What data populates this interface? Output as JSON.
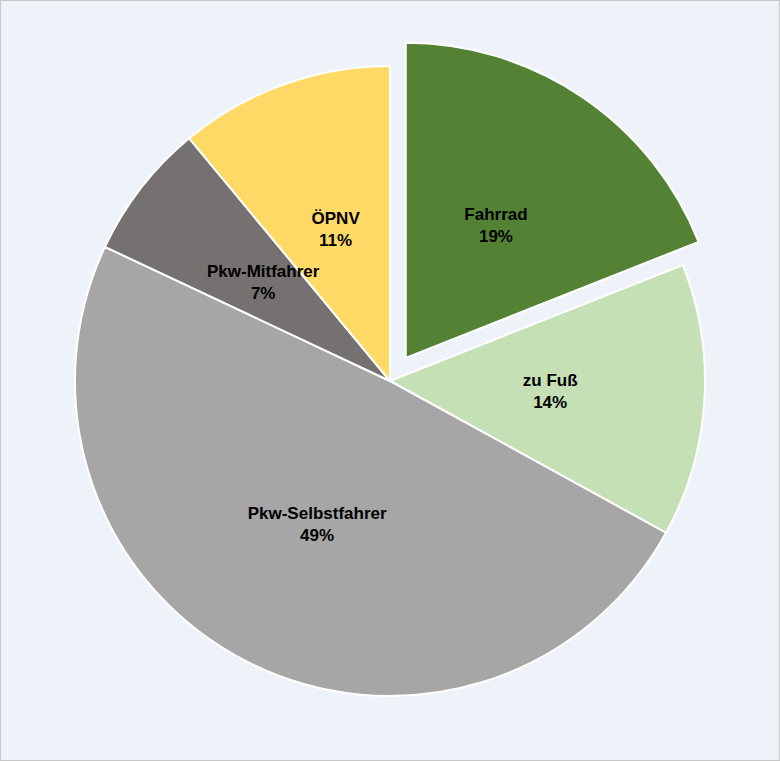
{
  "chart_data": {
    "type": "pie",
    "categories": [
      "Fahrrad",
      "zu Fuß",
      "Pkw-Selbstfahrer",
      "Pkw-Mitfahrer",
      "ÖPNV"
    ],
    "values": [
      19,
      14,
      49,
      7,
      11
    ],
    "value_labels": [
      "19%",
      "14%",
      "49%",
      "7%",
      "11%"
    ],
    "colors": [
      "#548235",
      "#c5e0b4",
      "#a6a6a6",
      "#767171",
      "#ffd966"
    ],
    "data_labels": true
  }
}
